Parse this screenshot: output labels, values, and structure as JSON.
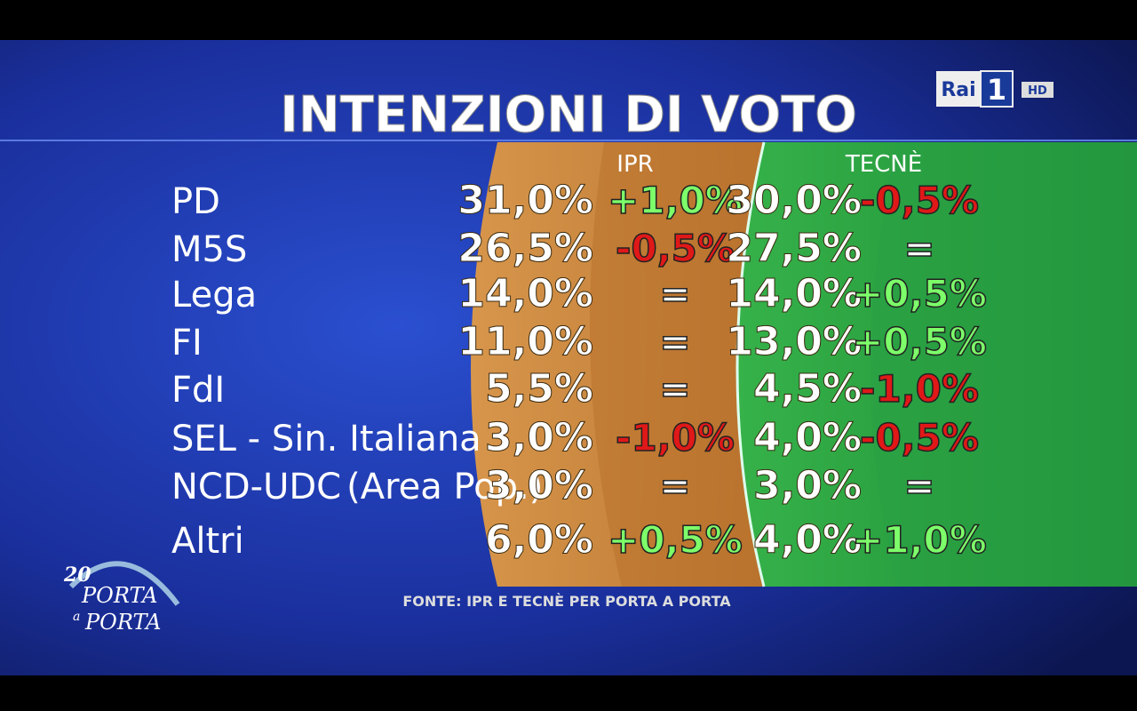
{
  "header": {
    "title": "INTENZIONI DI VOTO",
    "columns": [
      "IPR",
      "TECNÈ"
    ]
  },
  "table": {
    "rows": [
      {
        "party": "PD",
        "ipr": "31,0%",
        "ipr_change": "+1,0%",
        "tecne": "30,0%",
        "tecne_change": "-0,5%"
      },
      {
        "party": "M5S",
        "ipr": "26,5%",
        "ipr_change": "-0,5%",
        "tecne": "27,5%",
        "tecne_change": "="
      },
      {
        "party": "Lega",
        "ipr": "14,0%",
        "ipr_change": "=",
        "tecne": "14,0%",
        "tecne_change": "+0,5%"
      },
      {
        "party": "FI",
        "ipr": "11,0%",
        "ipr_change": "=",
        "tecne": "13,0%",
        "tecne_change": "+0,5%"
      },
      {
        "party": "FdI",
        "ipr": "5,5%",
        "ipr_change": "=",
        "tecne": "4,5%",
        "tecne_change": "-1,0%"
      },
      {
        "party": "SEL - Sin. Italiana",
        "ipr": "3,0%",
        "ipr_change": "-1,0%",
        "tecne": "4,0%",
        "tecne_change": "-0,5%"
      },
      {
        "party": "NCD-UDC",
        "party_note": "(Area Pop.)",
        "ipr": "3,0%",
        "ipr_change": "=",
        "tecne": "3,0%",
        "tecne_change": "="
      },
      {
        "party": "Altri",
        "ipr": "6,0%",
        "ipr_change": "+0,5%",
        "tecne": "4,0%",
        "tecne_change": "+1,0%"
      }
    ]
  },
  "source": "FONTE: IPR E TECNÈ PER PORTA A PORTA",
  "channel": {
    "name": "Rai",
    "number": "1",
    "badge": "HD"
  },
  "show": {
    "anniversary": "20",
    "line1": "PORTA",
    "connector": "a",
    "line2": "PORTA"
  }
}
